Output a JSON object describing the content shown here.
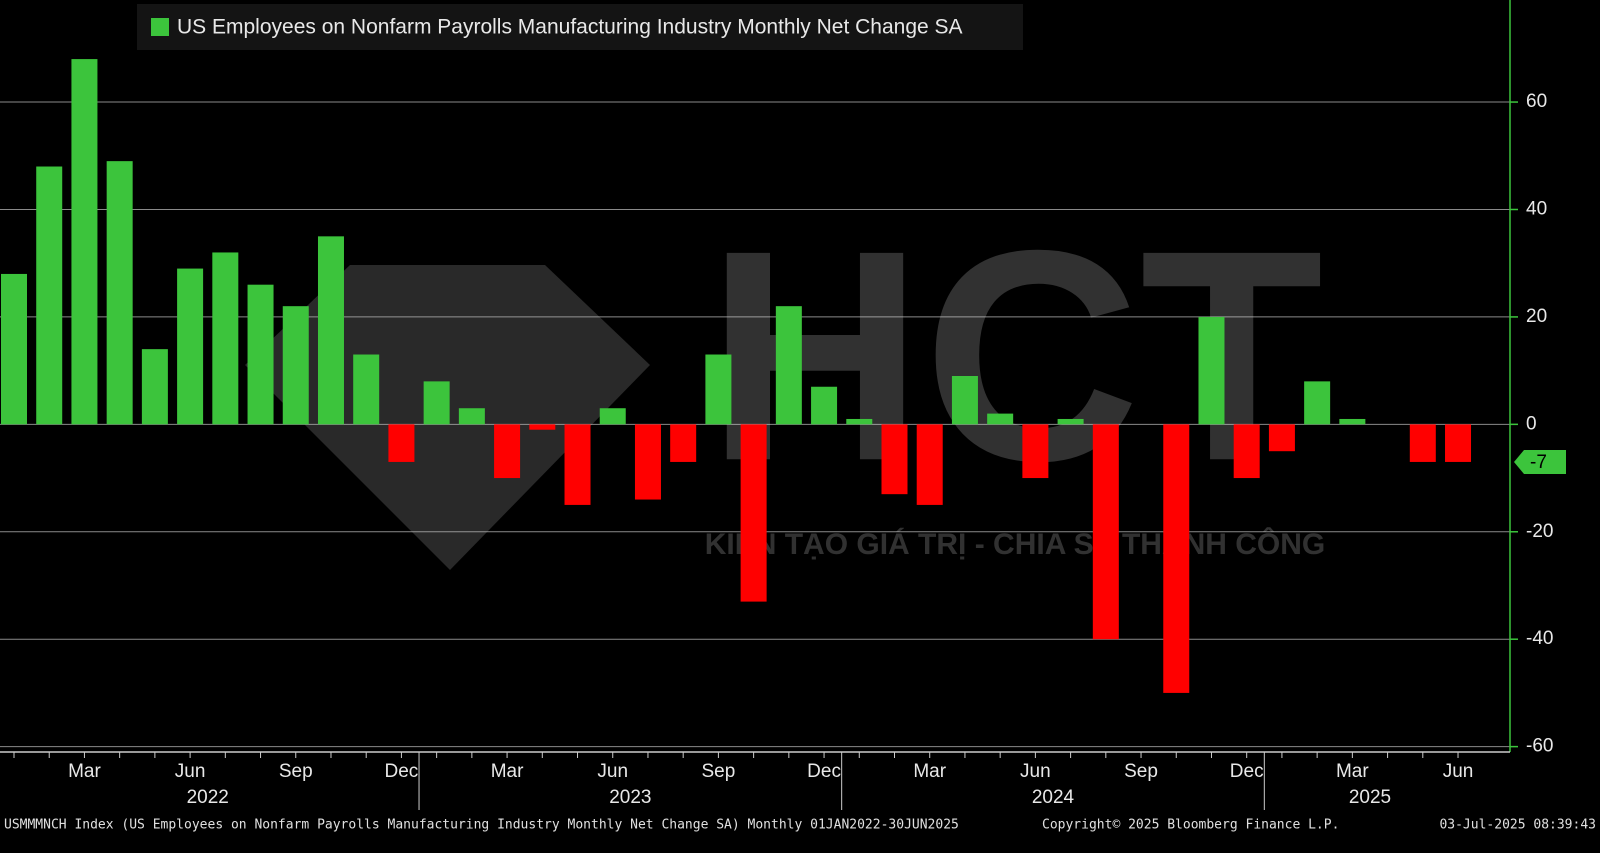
{
  "chart_data": {
    "type": "bar",
    "legend": "US Employees on Nonfarm Payrolls Manufacturing Industry Monthly Net Change SA",
    "categories": [
      null,
      null,
      "Mar",
      null,
      null,
      "Jun",
      null,
      null,
      "Sep",
      null,
      null,
      "Dec",
      null,
      null,
      "Mar",
      null,
      null,
      "Jun",
      null,
      null,
      "Sep",
      null,
      null,
      "Dec",
      null,
      null,
      "Mar",
      null,
      null,
      "Jun",
      null,
      null,
      "Sep",
      null,
      null,
      "Dec",
      null,
      null,
      "Mar",
      null,
      null,
      "Jun"
    ],
    "years": [
      "2022",
      "2023",
      "2024",
      "2025"
    ],
    "series": [
      {
        "name": "US Employees on Nonfarm Payrolls Manufacturing Industry Monthly Net Change SA",
        "color": "#3cc43c",
        "negative_color": "#ff0000",
        "values": [
          28,
          48,
          68,
          49,
          14,
          29,
          32,
          26,
          22,
          35,
          13,
          -7,
          8,
          3,
          -10,
          -1,
          -15,
          3,
          -14,
          -7,
          13,
          -33,
          22,
          7,
          1,
          -13,
          -15,
          9,
          2,
          -10,
          1,
          -40,
          0,
          -50,
          20,
          -10,
          -5,
          8,
          1,
          0,
          -7,
          -7
        ]
      }
    ],
    "ylim": [
      -61,
      79
    ],
    "yticks": [
      -60,
      -40,
      -20,
      0,
      20,
      40,
      60
    ],
    "grid": true,
    "watermark": "HCT",
    "watermark_slogan": "KIẾN TẠO GIÁ TRỊ - CHIA SẺ THÀNH CÔNG",
    "footer_left": "USMMMNCH Index (US Employees on Nonfarm Payrolls Manufacturing Industry Monthly Net Change SA)  Monthly 01JAN2022-30JUN2025",
    "footer_copyright": "Copyright© 2025 Bloomberg Finance L.P.",
    "footer_timestamp": "03-Jul-2025 08:39:43"
  }
}
